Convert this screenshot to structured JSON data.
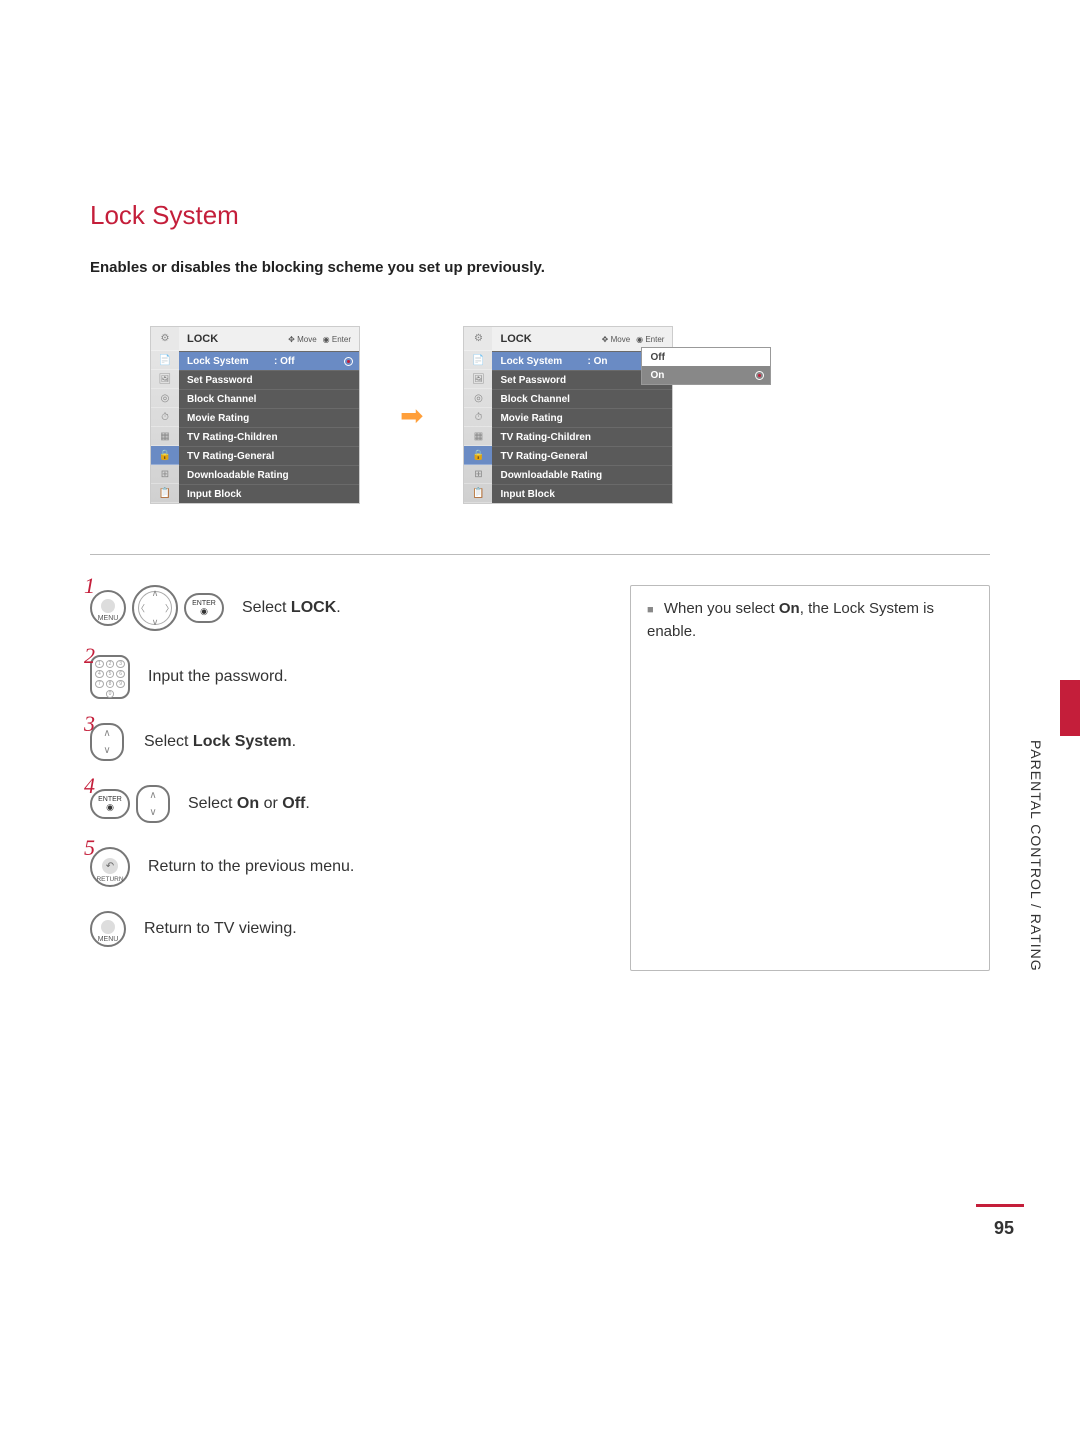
{
  "title": "Lock System",
  "subtitle": "Enables or disables the blocking scheme you set up previously.",
  "side_label": "PARENTAL CONTROL / RATING",
  "page_number": "95",
  "colors": {
    "accent": "#c41e3a",
    "menu_item_bg": "#5a5a5a",
    "menu_selected_bg": "#6a8bc4",
    "arrow": "#ff9f3a"
  },
  "menu_left": {
    "header": "LOCK",
    "hint_move": "Move",
    "hint_enter": "Enter",
    "selected_value": ": Off",
    "items": [
      "Lock System",
      "Set Password",
      "Block Channel",
      "Movie Rating",
      "TV Rating-Children",
      "TV Rating-General",
      "Downloadable Rating",
      "Input Block"
    ]
  },
  "menu_right": {
    "header": "LOCK",
    "hint_move": "Move",
    "hint_enter": "Enter",
    "selected_value": ": On",
    "items": [
      "Lock System",
      "Set Password",
      "Block Channel",
      "Movie Rating",
      "TV Rating-Children",
      "TV Rating-General",
      "Downloadable Rating",
      "Input Block"
    ],
    "dropdown": {
      "opt_off": "Off",
      "opt_on": "On"
    }
  },
  "note": {
    "prefix": "When you select ",
    "bold": "On",
    "suffix": ", the Lock System is enable."
  },
  "steps": {
    "s1": {
      "num": "1",
      "btn_menu": "MENU",
      "btn_enter": "ENTER",
      "text_pre": "Select ",
      "text_bold": "LOCK",
      "text_post": "."
    },
    "s2": {
      "num": "2",
      "text": "Input the password."
    },
    "s3": {
      "num": "3",
      "text_pre": "Select ",
      "text_bold": "Lock System",
      "text_post": "."
    },
    "s4": {
      "num": "4",
      "btn_enter": "ENTER",
      "text_pre": "Select ",
      "text_bold1": "On",
      "text_mid": " or ",
      "text_bold2": "Off",
      "text_post": "."
    },
    "s5": {
      "num": "5",
      "btn_return": "RETURN",
      "text": "Return to the previous menu."
    },
    "s6": {
      "btn_menu": "MENU",
      "text": "Return to TV viewing."
    }
  }
}
